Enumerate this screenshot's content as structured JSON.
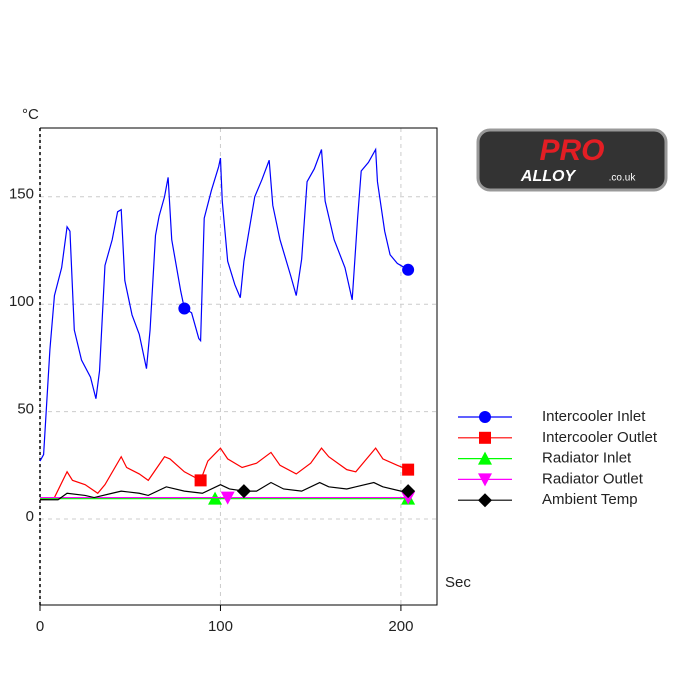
{
  "logo": {
    "main": "PRO",
    "sub": "ALLOY",
    "domain": ".co.uk"
  },
  "chart_data": {
    "type": "line",
    "y_unit_label": "°C",
    "x_unit_label": "Sec",
    "xlim": [
      0,
      220
    ],
    "ylim": [
      -40,
      182
    ],
    "xticks": [
      0,
      100,
      200
    ],
    "yticks": [
      0,
      50,
      100,
      150
    ],
    "grid": true,
    "legend": "right",
    "series": [
      {
        "name": "Intercooler Inlet",
        "color": "#0000ff",
        "marker": "circle",
        "marker_x": [
          80,
          204
        ],
        "x": [
          0,
          2,
          5.5,
          8,
          12,
          15,
          16.6,
          19,
          23,
          28,
          31,
          33,
          36,
          40,
          43,
          45,
          47,
          51,
          55,
          59,
          61,
          64,
          66,
          69,
          71,
          73,
          78,
          80,
          84,
          88,
          89,
          91,
          95,
          99,
          100,
          101,
          104,
          108,
          111,
          113,
          119,
          123,
          127,
          129,
          133,
          139,
          142,
          145,
          148,
          152,
          156,
          158,
          163,
          169,
          173,
          176,
          178,
          182,
          186,
          187,
          191,
          194,
          198,
          204
        ],
        "values": [
          27,
          30,
          79,
          104,
          117,
          136,
          134,
          88,
          74,
          66,
          56,
          69,
          118,
          130,
          143,
          144,
          111,
          95,
          86,
          70,
          88,
          132,
          141,
          150,
          159,
          130,
          106,
          98,
          96,
          84,
          83,
          140,
          153,
          164,
          168,
          148,
          120,
          109,
          103,
          120,
          150,
          158,
          167,
          146,
          130,
          113,
          104,
          121,
          157,
          163,
          172,
          148,
          130,
          117,
          102,
          140,
          162,
          166,
          172,
          157,
          134,
          123,
          119,
          116
        ]
      },
      {
        "name": "Intercooler Outlet",
        "color": "#ff0000",
        "marker": "square",
        "marker_x": [
          89,
          204
        ],
        "x": [
          0,
          8,
          15,
          18,
          25,
          32,
          36,
          45,
          48,
          55,
          60,
          69,
          72,
          80,
          89,
          93,
          100,
          104,
          112,
          120,
          128,
          133,
          142,
          150,
          156,
          160,
          170,
          175,
          180,
          186,
          190,
          198,
          204
        ],
        "values": [
          9,
          10,
          22,
          18,
          16,
          12,
          16,
          29,
          24,
          21,
          18,
          29,
          28,
          22,
          18,
          27,
          33,
          28,
          24,
          26,
          31,
          25,
          21,
          26,
          33,
          29,
          23,
          22,
          27,
          33,
          28,
          25,
          23
        ]
      },
      {
        "name": "Radiator Inlet",
        "color": "#00ff00",
        "marker": "triangle-up",
        "marker_x": [
          97,
          204
        ],
        "x": [
          0,
          97,
          204
        ],
        "values": [
          9.5,
          9.5,
          9.5
        ]
      },
      {
        "name": "Radiator Outlet",
        "color": "#ff00ff",
        "marker": "triangle-down",
        "marker_x": [
          104,
          204
        ],
        "x": [
          0,
          104,
          204
        ],
        "values": [
          10,
          10,
          10
        ]
      },
      {
        "name": "Ambient Temp",
        "color": "#000000",
        "marker": "diamond",
        "marker_x": [
          113,
          204
        ],
        "x": [
          0,
          10,
          15,
          25,
          30,
          40,
          45,
          55,
          60,
          70,
          80,
          90,
          100,
          105,
          113,
          120,
          128,
          135,
          145,
          155,
          160,
          170,
          175,
          185,
          190,
          200,
          204
        ],
        "values": [
          9,
          9,
          12,
          11,
          10,
          12,
          13,
          12,
          11,
          15,
          13,
          12,
          16,
          14,
          13,
          13,
          17,
          14,
          13,
          17,
          15,
          14,
          15,
          17,
          15,
          13,
          13
        ]
      }
    ]
  }
}
